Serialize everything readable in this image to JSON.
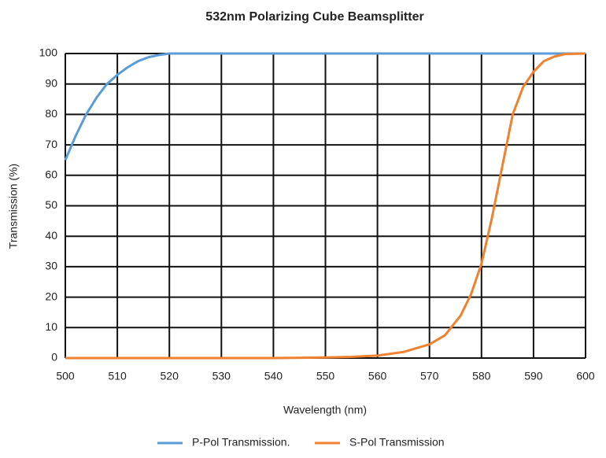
{
  "chart_data": {
    "type": "line",
    "title": "532nm Polarizing Cube Beamsplitter",
    "x_label": "Wavelength (nm)",
    "y_label": "Transmission (%)",
    "x": [
      500,
      502,
      504,
      506,
      508,
      510,
      512,
      514,
      516,
      518,
      520,
      530,
      540,
      550,
      555,
      560,
      565,
      570,
      573,
      576,
      578,
      580,
      582,
      584,
      586,
      588,
      590,
      592,
      594,
      596,
      600
    ],
    "series": [
      {
        "name": "P-Pol Transmission.",
        "color": "#5b9bd8",
        "values": [
          65,
          73,
          80,
          85.5,
          90,
          93,
          95.5,
          97.5,
          98.8,
          99.5,
          100,
          100,
          100,
          100,
          100,
          100,
          100,
          100,
          100,
          100,
          100,
          100,
          100,
          100,
          100,
          100,
          100,
          100,
          100,
          100,
          100
        ]
      },
      {
        "name": "S-Pol Transmission",
        "color": "#f0822f",
        "values": [
          0,
          0,
          0,
          0,
          0,
          0,
          0,
          0,
          0,
          0,
          0,
          0,
          0,
          0.2,
          0.4,
          0.8,
          2,
          4.5,
          7.5,
          14,
          21,
          31,
          46,
          63,
          80,
          89,
          94,
          97.5,
          99,
          99.8,
          100
        ]
      }
    ],
    "xlim": [
      500,
      600
    ],
    "xticks": [
      500,
      510,
      520,
      530,
      540,
      550,
      560,
      570,
      580,
      590,
      600
    ],
    "ylim": [
      0,
      100
    ],
    "yticks": [
      0,
      10,
      20,
      30,
      40,
      50,
      60,
      70,
      80,
      90,
      100
    ],
    "grid": true,
    "legend": "bottom"
  }
}
